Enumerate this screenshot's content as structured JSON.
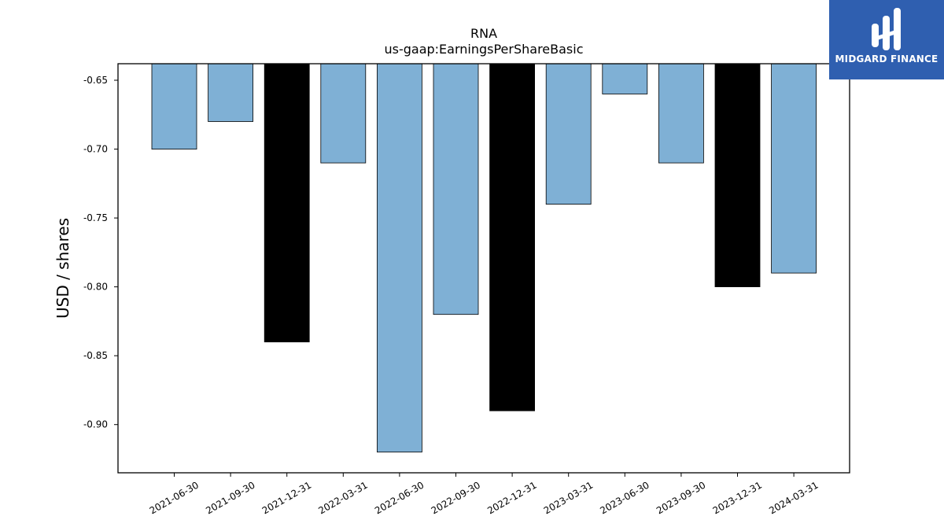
{
  "chart_data": {
    "type": "bar",
    "title": "RNA",
    "subtitle": "us-gaap:EarningsPerShareBasic",
    "xlabel": "",
    "ylabel": "USD / shares",
    "ylim": [
      -0.935,
      -0.638
    ],
    "yticks": [
      "-0.65",
      "-0.70",
      "-0.75",
      "-0.80",
      "-0.85",
      "-0.90"
    ],
    "ytick_values": [
      -0.65,
      -0.7,
      -0.75,
      -0.8,
      -0.85,
      -0.9
    ],
    "categories": [
      "2021-06-30",
      "2021-09-30",
      "2021-12-31",
      "2022-03-31",
      "2022-06-30",
      "2022-09-30",
      "2022-12-31",
      "2023-03-31",
      "2023-06-30",
      "2023-09-30",
      "2023-12-31",
      "2024-03-31"
    ],
    "values": [
      -0.7,
      -0.68,
      -0.84,
      -0.71,
      -0.92,
      -0.82,
      -0.89,
      -0.74,
      -0.66,
      -0.71,
      -0.8,
      -0.79
    ],
    "highlight": [
      false,
      false,
      true,
      false,
      false,
      false,
      true,
      false,
      false,
      false,
      true,
      false
    ],
    "colors": {
      "normal": "#7fb0d5",
      "highlight": "#000000",
      "edge": "#000000"
    },
    "grid": false,
    "legend": "none"
  },
  "logo": {
    "text": "MIDGARD FINANCE",
    "background": "#2f5fb0",
    "icon": "midgard-logo-icon"
  }
}
